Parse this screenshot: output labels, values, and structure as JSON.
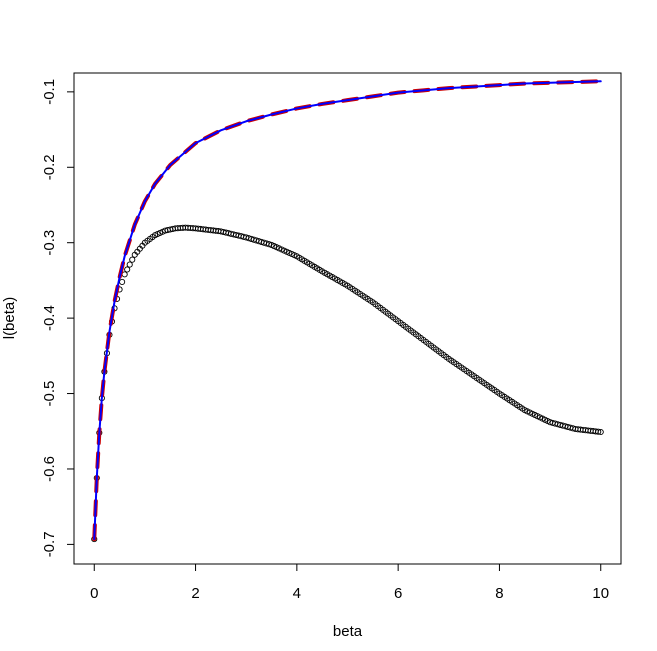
{
  "chart_data": {
    "type": "line",
    "title": "",
    "xlabel": "beta",
    "ylabel": "l(beta)",
    "xlim": [
      -0.4,
      10.4
    ],
    "ylim": [
      -0.726,
      -0.075
    ],
    "xticks": [
      0,
      2,
      4,
      6,
      8,
      10
    ],
    "yticks": [
      -0.7,
      -0.6,
      -0.5,
      -0.4,
      -0.3,
      -0.2,
      -0.1
    ],
    "grid": false,
    "legend": "none",
    "colors": {
      "points": "#000000",
      "dashed_line": "#cc0000",
      "solid_line": "#0000ff"
    },
    "series": [
      {
        "kind": "points",
        "color": "#000000",
        "x": [
          0,
          0.05,
          0.1,
          0.15,
          0.2,
          0.3,
          0.4,
          0.5,
          0.6,
          0.8,
          1.0,
          1.2,
          1.4,
          1.6,
          1.8,
          2.0,
          2.5,
          3.0,
          3.5,
          4.0,
          4.5,
          5.0,
          5.5,
          6.0,
          6.5,
          7.0,
          7.5,
          8.0,
          8.5,
          9.0,
          9.5,
          10.0
        ],
        "y": [
          -0.693,
          -0.612,
          -0.552,
          -0.506,
          -0.471,
          -0.422,
          -0.387,
          -0.362,
          -0.342,
          -0.316,
          -0.3,
          -0.29,
          -0.284,
          -0.281,
          -0.28,
          -0.281,
          -0.285,
          -0.293,
          -0.303,
          -0.318,
          -0.338,
          -0.357,
          -0.379,
          -0.404,
          -0.429,
          -0.454,
          -0.477,
          -0.5,
          -0.522,
          -0.538,
          -0.547,
          -0.551
        ]
      },
      {
        "kind": "dashed-line",
        "color": "#cc0000",
        "x": [
          0,
          0.05,
          0.1,
          0.15,
          0.2,
          0.3,
          0.4,
          0.5,
          0.6,
          0.8,
          1.0,
          1.2,
          1.5,
          2.0,
          2.5,
          3.0,
          3.5,
          4.0,
          4.5,
          5.0,
          5.5,
          6.0,
          6.5,
          7.0,
          7.5,
          8.0,
          8.5,
          9.0,
          9.5,
          10.0
        ],
        "y": [
          -0.693,
          -0.612,
          -0.552,
          -0.506,
          -0.471,
          -0.418,
          -0.378,
          -0.346,
          -0.318,
          -0.276,
          -0.245,
          -0.222,
          -0.197,
          -0.168,
          -0.151,
          -0.139,
          -0.13,
          -0.122,
          -0.116,
          -0.111,
          -0.106,
          -0.101,
          -0.098,
          -0.095,
          -0.093,
          -0.091,
          -0.089,
          -0.088,
          -0.087,
          -0.086
        ]
      },
      {
        "kind": "solid-line",
        "color": "#0000ff",
        "x": [
          0,
          0.05,
          0.1,
          0.15,
          0.2,
          0.3,
          0.4,
          0.5,
          0.6,
          0.8,
          1.0,
          1.2,
          1.5,
          2.0,
          2.5,
          3.0,
          3.5,
          4.0,
          4.5,
          5.0,
          5.5,
          6.0,
          6.5,
          7.0,
          7.5,
          8.0,
          8.5,
          9.0,
          9.5,
          10.0
        ],
        "y": [
          -0.693,
          -0.612,
          -0.552,
          -0.506,
          -0.471,
          -0.418,
          -0.378,
          -0.346,
          -0.318,
          -0.276,
          -0.245,
          -0.222,
          -0.197,
          -0.168,
          -0.151,
          -0.139,
          -0.13,
          -0.122,
          -0.116,
          -0.111,
          -0.106,
          -0.101,
          -0.098,
          -0.095,
          -0.093,
          -0.091,
          -0.089,
          -0.088,
          -0.087,
          -0.086
        ]
      }
    ]
  }
}
